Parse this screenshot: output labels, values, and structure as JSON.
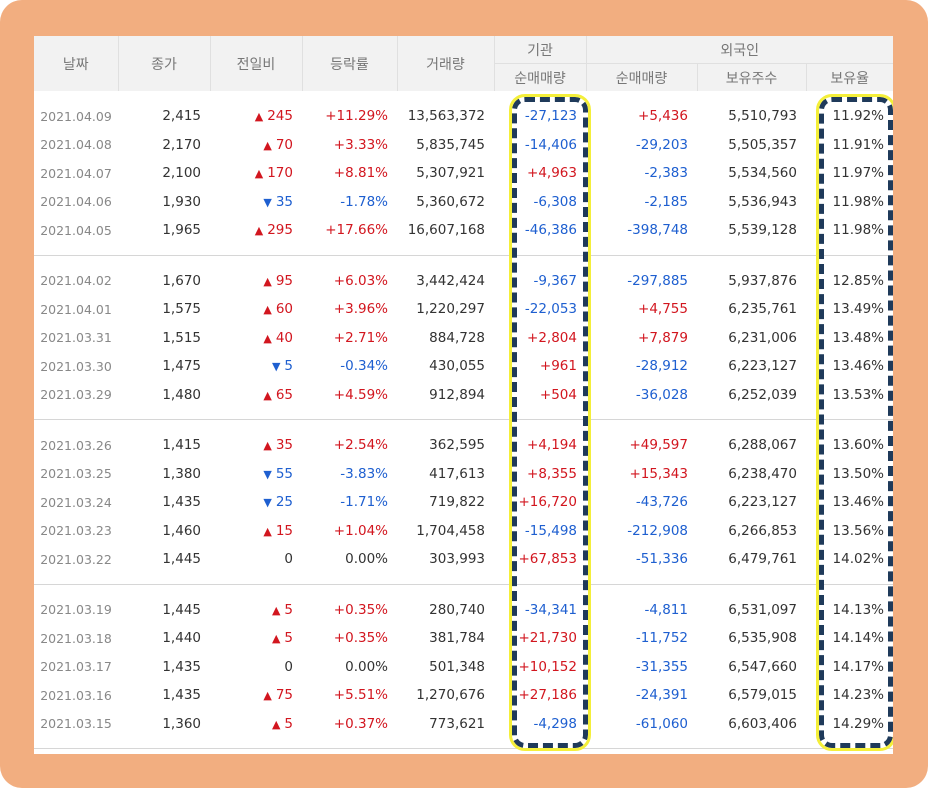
{
  "headers": {
    "date": "날짜",
    "close": "종가",
    "diff": "전일비",
    "rate": "등락률",
    "volume": "거래량",
    "institution": "기관",
    "foreign": "외국인",
    "inst_net": "순매매량",
    "foreign_net": "순매매량",
    "foreign_holdings": "보유주수",
    "foreign_ratio": "보유율"
  },
  "groups": [
    [
      {
        "date": "2021.04.09",
        "close": "2,415",
        "dir": "up",
        "diff": "245",
        "rate": "+11.29%",
        "volume": "13,563,372",
        "inst": "-27,123",
        "inst_dir": "down",
        "fnet": "+5,436",
        "fnet_dir": "up",
        "fhold": "5,510,793",
        "fratio": "11.92%"
      },
      {
        "date": "2021.04.08",
        "close": "2,170",
        "dir": "up",
        "diff": "70",
        "rate": "+3.33%",
        "volume": "5,835,745",
        "inst": "-14,406",
        "inst_dir": "down",
        "fnet": "-29,203",
        "fnet_dir": "down",
        "fhold": "5,505,357",
        "fratio": "11.91%"
      },
      {
        "date": "2021.04.07",
        "close": "2,100",
        "dir": "up",
        "diff": "170",
        "rate": "+8.81%",
        "volume": "5,307,921",
        "inst": "+4,963",
        "inst_dir": "up",
        "fnet": "-2,383",
        "fnet_dir": "down",
        "fhold": "5,534,560",
        "fratio": "11.97%"
      },
      {
        "date": "2021.04.06",
        "close": "1,930",
        "dir": "down",
        "diff": "35",
        "rate": "-1.78%",
        "volume": "5,360,672",
        "inst": "-6,308",
        "inst_dir": "down",
        "fnet": "-2,185",
        "fnet_dir": "down",
        "fhold": "5,536,943",
        "fratio": "11.98%"
      },
      {
        "date": "2021.04.05",
        "close": "1,965",
        "dir": "up",
        "diff": "295",
        "rate": "+17.66%",
        "volume": "16,607,168",
        "inst": "-46,386",
        "inst_dir": "down",
        "fnet": "-398,748",
        "fnet_dir": "down",
        "fhold": "5,539,128",
        "fratio": "11.98%"
      }
    ],
    [
      {
        "date": "2021.04.02",
        "close": "1,670",
        "dir": "up",
        "diff": "95",
        "rate": "+6.03%",
        "volume": "3,442,424",
        "inst": "-9,367",
        "inst_dir": "down",
        "fnet": "-297,885",
        "fnet_dir": "down",
        "fhold": "5,937,876",
        "fratio": "12.85%"
      },
      {
        "date": "2021.04.01",
        "close": "1,575",
        "dir": "up",
        "diff": "60",
        "rate": "+3.96%",
        "volume": "1,220,297",
        "inst": "-22,053",
        "inst_dir": "down",
        "fnet": "+4,755",
        "fnet_dir": "up",
        "fhold": "6,235,761",
        "fratio": "13.49%"
      },
      {
        "date": "2021.03.31",
        "close": "1,515",
        "dir": "up",
        "diff": "40",
        "rate": "+2.71%",
        "volume": "884,728",
        "inst": "+2,804",
        "inst_dir": "up",
        "fnet": "+7,879",
        "fnet_dir": "up",
        "fhold": "6,231,006",
        "fratio": "13.48%"
      },
      {
        "date": "2021.03.30",
        "close": "1,475",
        "dir": "down",
        "diff": "5",
        "rate": "-0.34%",
        "volume": "430,055",
        "inst": "+961",
        "inst_dir": "up",
        "fnet": "-28,912",
        "fnet_dir": "down",
        "fhold": "6,223,127",
        "fratio": "13.46%"
      },
      {
        "date": "2021.03.29",
        "close": "1,480",
        "dir": "up",
        "diff": "65",
        "rate": "+4.59%",
        "volume": "912,894",
        "inst": "+504",
        "inst_dir": "up",
        "fnet": "-36,028",
        "fnet_dir": "down",
        "fhold": "6,252,039",
        "fratio": "13.53%"
      }
    ],
    [
      {
        "date": "2021.03.26",
        "close": "1,415",
        "dir": "up",
        "diff": "35",
        "rate": "+2.54%",
        "volume": "362,595",
        "inst": "+4,194",
        "inst_dir": "up",
        "fnet": "+49,597",
        "fnet_dir": "up",
        "fhold": "6,288,067",
        "fratio": "13.60%"
      },
      {
        "date": "2021.03.25",
        "close": "1,380",
        "dir": "down",
        "diff": "55",
        "rate": "-3.83%",
        "volume": "417,613",
        "inst": "+8,355",
        "inst_dir": "up",
        "fnet": "+15,343",
        "fnet_dir": "up",
        "fhold": "6,238,470",
        "fratio": "13.50%"
      },
      {
        "date": "2021.03.24",
        "close": "1,435",
        "dir": "down",
        "diff": "25",
        "rate": "-1.71%",
        "volume": "719,822",
        "inst": "+16,720",
        "inst_dir": "up",
        "fnet": "-43,726",
        "fnet_dir": "down",
        "fhold": "6,223,127",
        "fratio": "13.46%"
      },
      {
        "date": "2021.03.23",
        "close": "1,460",
        "dir": "up",
        "diff": "15",
        "rate": "+1.04%",
        "volume": "1,704,458",
        "inst": "-15,498",
        "inst_dir": "down",
        "fnet": "-212,908",
        "fnet_dir": "down",
        "fhold": "6,266,853",
        "fratio": "13.56%"
      },
      {
        "date": "2021.03.22",
        "close": "1,445",
        "dir": "none",
        "diff": "0",
        "rate": "0.00%",
        "volume": "303,993",
        "inst": "+67,853",
        "inst_dir": "up",
        "fnet": "-51,336",
        "fnet_dir": "down",
        "fhold": "6,479,761",
        "fratio": "14.02%"
      }
    ],
    [
      {
        "date": "2021.03.19",
        "close": "1,445",
        "dir": "up",
        "diff": "5",
        "rate": "+0.35%",
        "volume": "280,740",
        "inst": "-34,341",
        "inst_dir": "down",
        "fnet": "-4,811",
        "fnet_dir": "down",
        "fhold": "6,531,097",
        "fratio": "14.13%"
      },
      {
        "date": "2021.03.18",
        "close": "1,440",
        "dir": "up",
        "diff": "5",
        "rate": "+0.35%",
        "volume": "381,784",
        "inst": "+21,730",
        "inst_dir": "up",
        "fnet": "-11,752",
        "fnet_dir": "down",
        "fhold": "6,535,908",
        "fratio": "14.14%"
      },
      {
        "date": "2021.03.17",
        "close": "1,435",
        "dir": "none",
        "diff": "0",
        "rate": "0.00%",
        "volume": "501,348",
        "inst": "+10,152",
        "inst_dir": "up",
        "fnet": "-31,355",
        "fnet_dir": "down",
        "fhold": "6,547,660",
        "fratio": "14.17%"
      },
      {
        "date": "2021.03.16",
        "close": "1,435",
        "dir": "up",
        "diff": "75",
        "rate": "+5.51%",
        "volume": "1,270,676",
        "inst": "+27,186",
        "inst_dir": "up",
        "fnet": "-24,391",
        "fnet_dir": "down",
        "fhold": "6,579,015",
        "fratio": "14.23%"
      },
      {
        "date": "2021.03.15",
        "close": "1,360",
        "dir": "up",
        "diff": "5",
        "rate": "+0.37%",
        "volume": "773,621",
        "inst": "-4,298",
        "inst_dir": "down",
        "fnet": "-61,060",
        "fnet_dir": "down",
        "fhold": "6,603,406",
        "fratio": "14.29%"
      }
    ]
  ],
  "arrows": {
    "up": "▲",
    "down": "▼"
  },
  "colors": {
    "up": "#d2161f",
    "down": "#1e5fd0",
    "frame": "#f2ae80",
    "highlight_dash": "#1f3a5a",
    "highlight_glow": "#f4ef3a"
  },
  "highlights": [
    "institution-net-column",
    "foreign-ratio-column"
  ]
}
